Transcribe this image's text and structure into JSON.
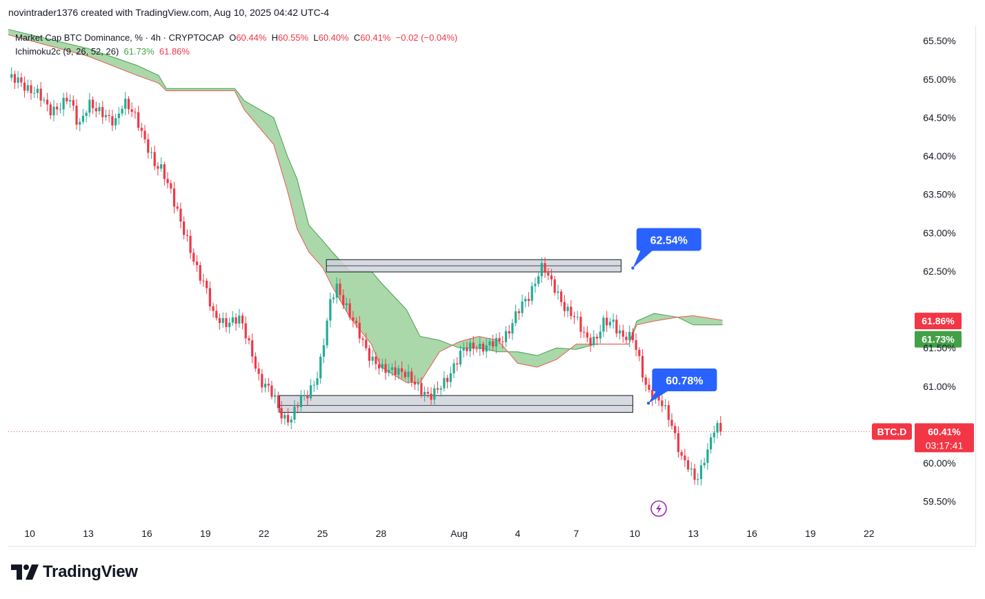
{
  "header": {
    "text": "novintrader1376 created with TradingView.com, Aug 10, 2025 04:42 UTC-4"
  },
  "legend": {
    "title": "Market Cap BTC Dominance, % · 4h · CRYPTOCAP",
    "o_label": "O",
    "o_value": "60.44%",
    "h_label": "H",
    "h_value": "60.55%",
    "l_label": "L",
    "l_value": "60.40%",
    "c_label": "C",
    "c_value": "60.41%",
    "change": "−0.02 (−0.04%)",
    "indicator_name": "Ichimoku2c (9, 26, 52, 26)",
    "indicator_v1": "61.73%",
    "indicator_v2": "61.86%"
  },
  "branding": {
    "text": "TradingView"
  },
  "colors": {
    "up": "#22ab94",
    "down": "#f23645",
    "cloud": "#a5d6a7",
    "cloud_up_edge": "#43a047",
    "cloud_down_edge": "#ef5350",
    "callout": "#2962ff",
    "zone_fill": "#d1d4dc",
    "zone_edge": "#131722"
  },
  "chart_data": {
    "type": "candlestick",
    "symbol": "BTC.D",
    "timeframe": "4h",
    "y_axis": {
      "range": [
        59.2,
        65.7
      ],
      "ticks": [
        "65.50%",
        "65.00%",
        "64.50%",
        "64.00%",
        "63.50%",
        "63.00%",
        "62.50%",
        "61.50%",
        "61.00%",
        "60.00%",
        "59.50%"
      ],
      "tick_values": [
        65.5,
        65.0,
        64.5,
        64.0,
        63.5,
        63.0,
        62.5,
        61.5,
        61.0,
        60.0,
        59.5
      ]
    },
    "x_axis": {
      "ticks": [
        "10",
        "13",
        "16",
        "19",
        "22",
        "25",
        "28",
        "Aug",
        "4",
        "7",
        "10",
        "13",
        "16",
        "19",
        "22"
      ],
      "tick_days": [
        0,
        3,
        6,
        9,
        12,
        15,
        18,
        22,
        25,
        28,
        31,
        34,
        37,
        40,
        43
      ],
      "day_range": [
        -1.1,
        45.2
      ]
    },
    "price_path": [
      [
        -1.1,
        65.02
      ],
      [
        0.3,
        64.85
      ],
      [
        1.0,
        64.58
      ],
      [
        2.0,
        64.75
      ],
      [
        2.5,
        64.38
      ],
      [
        3.0,
        64.72
      ],
      [
        3.5,
        64.55
      ],
      [
        4.4,
        64.48
      ],
      [
        4.8,
        64.68
      ],
      [
        5.5,
        64.5
      ],
      [
        6.0,
        64.15
      ],
      [
        6.4,
        63.85
      ],
      [
        6.8,
        63.82
      ],
      [
        7.2,
        63.6
      ],
      [
        7.8,
        63.05
      ],
      [
        8.5,
        62.6
      ],
      [
        9.0,
        62.3
      ],
      [
        9.4,
        61.9
      ],
      [
        10.0,
        61.85
      ],
      [
        10.8,
        61.85
      ],
      [
        11.4,
        61.45
      ],
      [
        11.8,
        61.05
      ],
      [
        12.5,
        60.88
      ],
      [
        13.0,
        60.6
      ],
      [
        13.4,
        60.55
      ],
      [
        13.8,
        60.8
      ],
      [
        14.3,
        60.95
      ],
      [
        14.8,
        61.15
      ],
      [
        15.1,
        61.6
      ],
      [
        15.4,
        62.1
      ],
      [
        15.7,
        62.35
      ],
      [
        16.0,
        62.15
      ],
      [
        16.4,
        61.9
      ],
      [
        17.0,
        61.65
      ],
      [
        17.5,
        61.35
      ],
      [
        18.0,
        61.2
      ],
      [
        18.7,
        61.25
      ],
      [
        19.4,
        61.1
      ],
      [
        20.0,
        61.0
      ],
      [
        20.5,
        60.85
      ],
      [
        20.8,
        60.9
      ],
      [
        21.2,
        61.05
      ],
      [
        21.8,
        61.3
      ],
      [
        22.2,
        61.45
      ],
      [
        22.8,
        61.55
      ],
      [
        23.4,
        61.5
      ],
      [
        24.0,
        61.58
      ],
      [
        24.5,
        61.72
      ],
      [
        25.0,
        61.95
      ],
      [
        25.6,
        62.2
      ],
      [
        26.0,
        62.45
      ],
      [
        26.3,
        62.56
      ],
      [
        26.6,
        62.38
      ],
      [
        27.0,
        62.25
      ],
      [
        27.5,
        62.0
      ],
      [
        28.0,
        61.85
      ],
      [
        28.5,
        61.65
      ],
      [
        29.0,
        61.6
      ],
      [
        29.4,
        61.8
      ],
      [
        29.9,
        61.85
      ],
      [
        30.4,
        61.65
      ],
      [
        30.9,
        61.6
      ],
      [
        31.3,
        61.3
      ],
      [
        31.6,
        61.0
      ],
      [
        32.0,
        60.85
      ],
      [
        32.4,
        60.75
      ],
      [
        32.8,
        60.6
      ],
      [
        33.1,
        60.35
      ],
      [
        33.4,
        60.05
      ],
      [
        33.7,
        59.95
      ],
      [
        34.0,
        59.8
      ],
      [
        34.3,
        59.85
      ],
      [
        34.5,
        60.05
      ],
      [
        34.8,
        60.2
      ],
      [
        35.1,
        60.45
      ],
      [
        35.3,
        60.44
      ],
      [
        35.4,
        60.41
      ]
    ],
    "last_price": "60.41%",
    "last_value": 60.41,
    "countdown": "03:17:41",
    "ichimoku_labels": {
      "span_a": "61.73%",
      "span_b": "61.86%",
      "span_a_value": 61.73,
      "span_b_value": 61.86
    },
    "ichimoku_span_a": [
      [
        -1.1,
        65.65
      ],
      [
        3.0,
        65.4
      ],
      [
        5.5,
        65.18
      ],
      [
        6.6,
        65.05
      ],
      [
        7.0,
        64.88
      ],
      [
        10.5,
        64.88
      ],
      [
        11.0,
        64.72
      ],
      [
        12.5,
        64.5
      ],
      [
        13.2,
        64.0
      ],
      [
        13.7,
        63.7
      ],
      [
        14.3,
        63.1
      ],
      [
        15.0,
        62.9
      ],
      [
        15.5,
        62.75
      ],
      [
        16.4,
        62.5
      ],
      [
        17.5,
        62.5
      ],
      [
        18.0,
        62.35
      ],
      [
        19.3,
        62.0
      ],
      [
        20.0,
        61.65
      ],
      [
        21.0,
        61.6
      ],
      [
        22.0,
        61.5
      ],
      [
        23.0,
        61.5
      ],
      [
        24.0,
        61.45
      ],
      [
        25.0,
        61.45
      ],
      [
        26.0,
        61.4
      ],
      [
        27.0,
        61.5
      ],
      [
        28.0,
        61.48
      ],
      [
        29.0,
        61.55
      ],
      [
        30.0,
        61.55
      ],
      [
        30.7,
        61.55
      ],
      [
        31.1,
        61.85
      ],
      [
        32.0,
        61.95
      ],
      [
        33.2,
        61.9
      ],
      [
        34.0,
        61.8
      ],
      [
        35.5,
        61.8
      ]
    ],
    "ichimoku_span_b": [
      [
        -1.1,
        65.58
      ],
      [
        3.0,
        65.3
      ],
      [
        5.5,
        65.05
      ],
      [
        6.6,
        64.95
      ],
      [
        7.0,
        64.85
      ],
      [
        10.5,
        64.85
      ],
      [
        11.0,
        64.6
      ],
      [
        12.5,
        64.15
      ],
      [
        13.2,
        63.55
      ],
      [
        13.7,
        63.05
      ],
      [
        14.3,
        62.75
      ],
      [
        15.0,
        62.55
      ],
      [
        15.5,
        62.3
      ],
      [
        16.4,
        61.9
      ],
      [
        17.5,
        61.55
      ],
      [
        18.0,
        61.25
      ],
      [
        19.3,
        61.05
      ],
      [
        20.0,
        61.05
      ],
      [
        21.0,
        61.45
      ],
      [
        22.0,
        61.58
      ],
      [
        23.0,
        61.65
      ],
      [
        24.0,
        61.6
      ],
      [
        25.0,
        61.3
      ],
      [
        26.0,
        61.25
      ],
      [
        27.0,
        61.35
      ],
      [
        28.0,
        61.55
      ],
      [
        29.0,
        61.55
      ],
      [
        30.0,
        61.55
      ],
      [
        30.7,
        61.55
      ],
      [
        31.1,
        61.8
      ],
      [
        32.0,
        61.85
      ],
      [
        33.2,
        61.9
      ],
      [
        34.0,
        61.92
      ],
      [
        35.5,
        61.86
      ]
    ],
    "zones": [
      {
        "from_day": 15.2,
        "to_day": 30.3,
        "top": 62.65,
        "bottom": 62.49,
        "midline": 62.57
      },
      {
        "from_day": 12.8,
        "to_day": 30.9,
        "top": 60.88,
        "bottom": 60.66,
        "midline": 60.75
      }
    ],
    "callouts": [
      {
        "text": "62.54%",
        "label_day": 31.3,
        "label_value": 62.9,
        "anchor_day": 30.9,
        "anchor_value": 62.54
      },
      {
        "text": "60.78%",
        "label_day": 32.1,
        "label_value": 61.07,
        "anchor_day": 31.7,
        "anchor_value": 60.78
      }
    ]
  }
}
